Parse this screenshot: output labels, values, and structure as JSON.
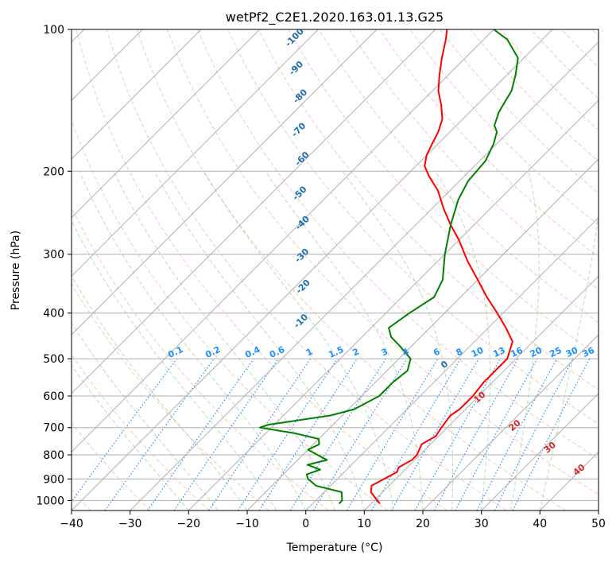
{
  "chart_data": {
    "type": "line",
    "title": "wetPf2_C2E1.2020.163.01.13.G25",
    "xlabel": "Temperature (°C)",
    "ylabel": "Pressure (hPa)",
    "xlim": [
      -40,
      50
    ],
    "ylim": [
      1050,
      100
    ],
    "y_scale": "log",
    "x_ticks": [
      -40,
      -30,
      -20,
      -10,
      0,
      10,
      20,
      30,
      40,
      50
    ],
    "x_tick_labels": [
      "−40",
      "−30",
      "−20",
      "−10",
      "0",
      "10",
      "20",
      "30",
      "40",
      "50"
    ],
    "y_ticks": [
      100,
      200,
      300,
      400,
      500,
      600,
      700,
      800,
      900,
      1000
    ],
    "y_tick_labels": [
      "100",
      "200",
      "300",
      "400",
      "500",
      "600",
      "700",
      "800",
      "900",
      "1000"
    ],
    "skew_deg": 45,
    "grid": true,
    "mixing_ratio_labels": [
      "0.1",
      "0.2",
      "0.4",
      "0.6",
      "1",
      "1.5",
      "2",
      "3",
      "4",
      "6",
      "8",
      "10",
      "13",
      "16",
      "20",
      "25",
      "30",
      "36"
    ],
    "mixing_ratio_values": [
      0.1,
      0.2,
      0.4,
      0.6,
      1,
      1.5,
      2,
      3,
      4,
      6,
      8,
      10,
      13,
      16,
      20,
      25,
      30,
      36
    ],
    "dry_adiabat_labels": [
      "-100",
      "-90",
      "-80",
      "-70",
      "-60",
      "-50",
      "-40",
      "-30",
      "-20",
      "-10"
    ],
    "moist_adiabat_labels": [
      "0",
      "10",
      "20",
      "30",
      "40"
    ],
    "series": [
      {
        "role": "temperature",
        "color": "#ff0000",
        "pressure": [
          1015,
          1000,
          960,
          930,
          900,
          870,
          850,
          820,
          800,
          760,
          730,
          700,
          660,
          640,
          600,
          560,
          500,
          460,
          430,
          400,
          370,
          340,
          310,
          280,
          260,
          240,
          220,
          205,
          195,
          185,
          175,
          165,
          155,
          145,
          135,
          125,
          115,
          105,
          100
        ],
        "temperature": [
          11.5,
          10.5,
          8.0,
          7.0,
          8.0,
          9.0,
          8.5,
          9.5,
          9.5,
          8.5,
          9.5,
          9.0,
          8.5,
          9.0,
          9.0,
          8.5,
          8.5,
          6.5,
          3.0,
          -1.0,
          -5.5,
          -10.0,
          -15.0,
          -20.0,
          -24.0,
          -28.0,
          -32.0,
          -36.0,
          -38.5,
          -40.0,
          -41.0,
          -42.0,
          -43.5,
          -46.0,
          -49.0,
          -51.5,
          -54.0,
          -56.5,
          -58.0
        ]
      },
      {
        "role": "dewpoint",
        "color": "#008000",
        "pressure": [
          1015,
          1000,
          960,
          930,
          900,
          880,
          860,
          840,
          820,
          800,
          780,
          760,
          740,
          720,
          700,
          690,
          680,
          660,
          640,
          620,
          600,
          560,
          530,
          500,
          470,
          450,
          430,
          400,
          370,
          340,
          300,
          260,
          230,
          210,
          190,
          175,
          165,
          160,
          150,
          140,
          135,
          125,
          115,
          105,
          100
        ],
        "temperature": [
          4.5,
          4.5,
          3.0,
          -2.5,
          -5.0,
          -6.0,
          -4.5,
          -7.5,
          -5.0,
          -7.5,
          -10.0,
          -9.0,
          -10.0,
          -15.0,
          -22.0,
          -21.0,
          -18.0,
          -12.0,
          -9.0,
          -8.0,
          -7.0,
          -7.0,
          -6.5,
          -8.0,
          -12.0,
          -15.0,
          -17.0,
          -16.0,
          -14.5,
          -16.0,
          -20.0,
          -24.0,
          -27.0,
          -28.5,
          -29.0,
          -30.5,
          -32.0,
          -33.5,
          -35.0,
          -36.0,
          -36.5,
          -38.5,
          -41.0,
          -46.0,
          -50.0
        ]
      }
    ]
  }
}
